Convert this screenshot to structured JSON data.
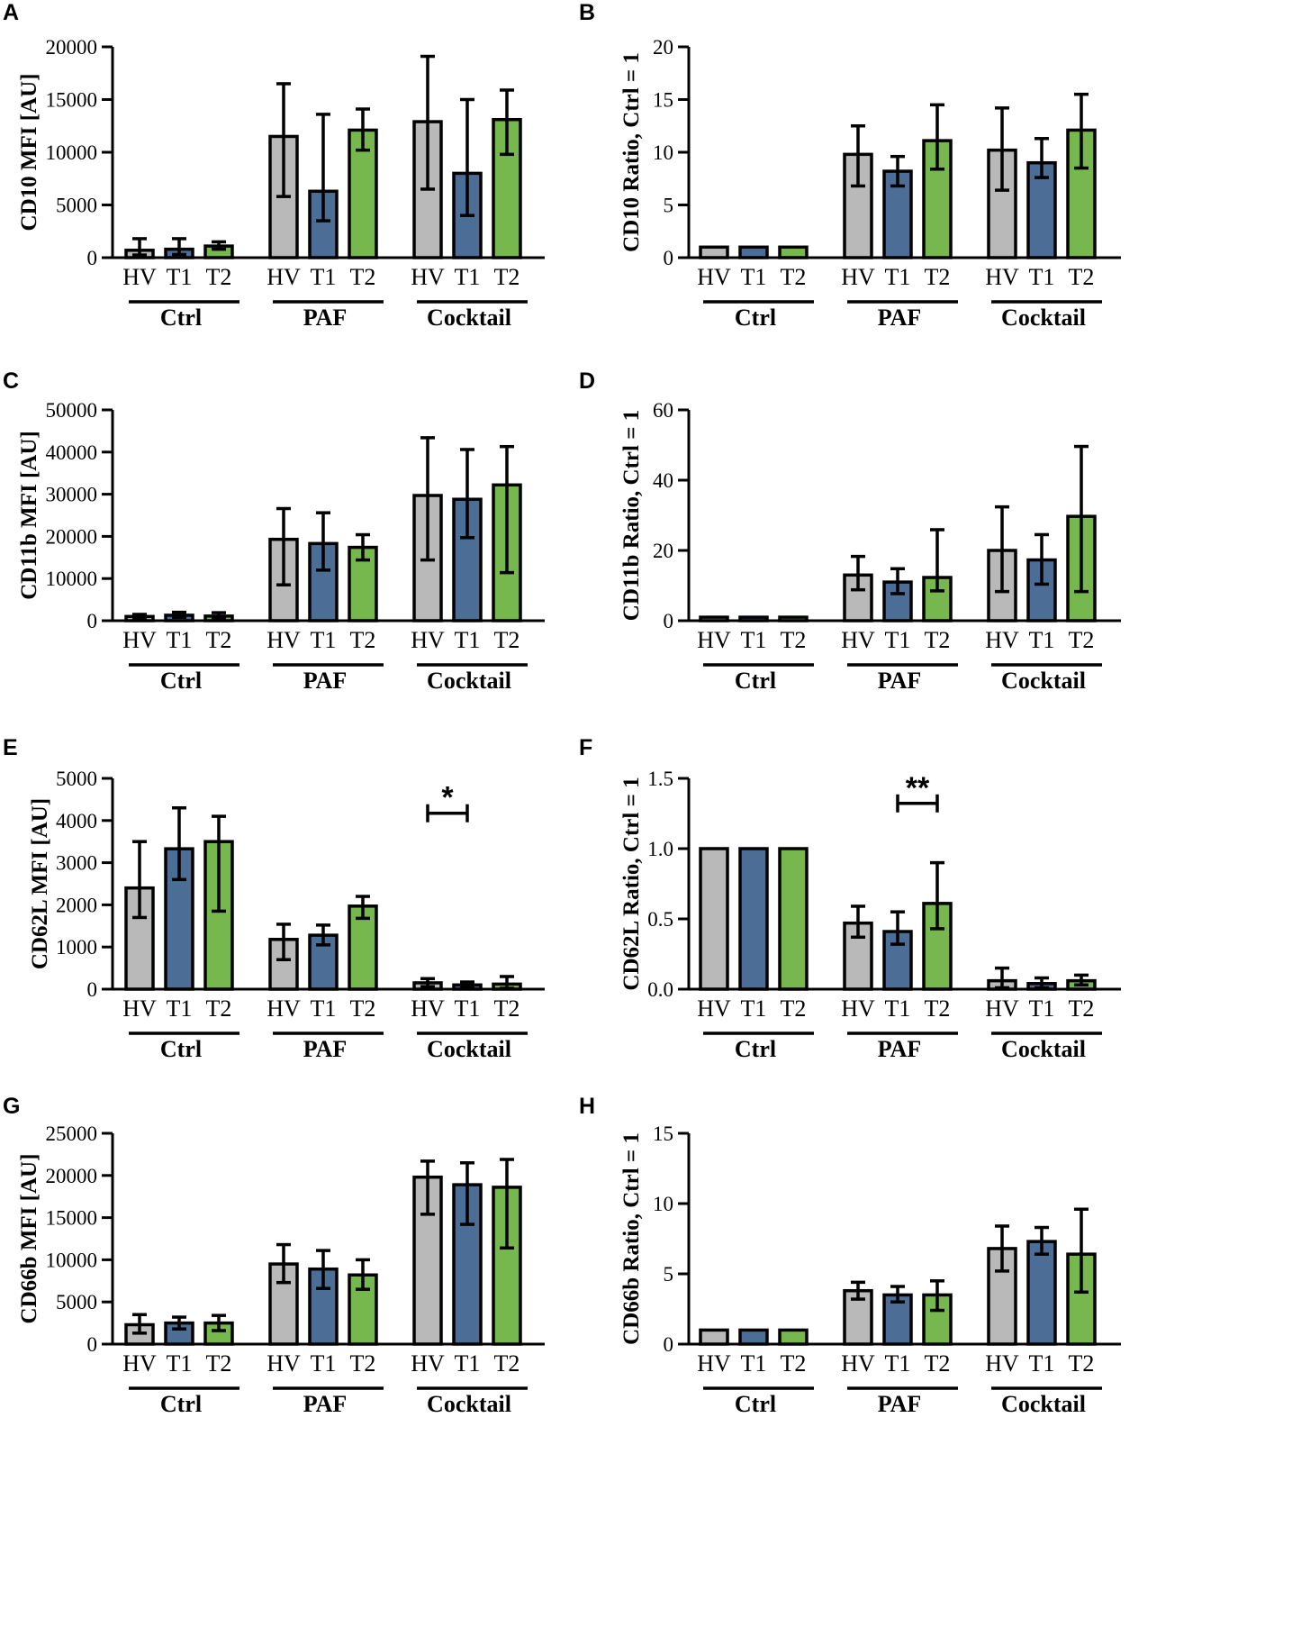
{
  "colors": {
    "HV": "#b9b9b9",
    "T1": "#4c6e96",
    "T2": "#77b84e",
    "axis": "#000000"
  },
  "chart_data": [
    {
      "panel": "A",
      "type": "bar",
      "ylabel": "CD10 MFI [AU]",
      "ylim": [
        0,
        20000
      ],
      "yticks": [
        0,
        5000,
        10000,
        15000,
        20000
      ],
      "ytick_labels": [
        "0",
        "5000",
        "10000",
        "15000",
        "20000"
      ],
      "groups": [
        "Ctrl",
        "PAF",
        "Cocktail"
      ],
      "categories": [
        "HV",
        "T1",
        "T2"
      ],
      "series": [
        {
          "name": "HV",
          "values": [
            700,
            11500,
            12900
          ],
          "err_low": [
            250,
            5800,
            6500
          ],
          "err_high": [
            1800,
            16500,
            19100
          ]
        },
        {
          "name": "T1",
          "values": [
            800,
            6300,
            8000
          ],
          "err_low": [
            300,
            3500,
            4000
          ],
          "err_high": [
            1800,
            13600,
            15000
          ]
        },
        {
          "name": "T2",
          "values": [
            1100,
            12100,
            13100
          ],
          "err_low": [
            800,
            10200,
            9800
          ],
          "err_high": [
            1500,
            14100,
            15900
          ]
        }
      ],
      "significance": []
    },
    {
      "panel": "B",
      "type": "bar",
      "ylabel": "CD10 Ratio, Ctrl = 1",
      "ylim": [
        0,
        20
      ],
      "yticks": [
        0,
        5,
        10,
        15,
        20
      ],
      "ytick_labels": [
        "0",
        "5",
        "10",
        "15",
        "20"
      ],
      "groups": [
        "Ctrl",
        "PAF",
        "Cocktail"
      ],
      "categories": [
        "HV",
        "T1",
        "T2"
      ],
      "series": [
        {
          "name": "HV",
          "values": [
            1,
            9.8,
            10.2
          ],
          "err_low": [
            1,
            6.8,
            6.4
          ],
          "err_high": [
            1,
            12.5,
            14.2
          ]
        },
        {
          "name": "T1",
          "values": [
            1,
            8.2,
            9.0
          ],
          "err_low": [
            1,
            6.8,
            7.6
          ],
          "err_high": [
            1,
            9.6,
            11.3
          ]
        },
        {
          "name": "T2",
          "values": [
            1,
            11.1,
            12.1
          ],
          "err_low": [
            1,
            8.4,
            8.5
          ],
          "err_high": [
            1,
            14.5,
            15.5
          ]
        }
      ],
      "significance": []
    },
    {
      "panel": "C",
      "type": "bar",
      "ylabel": "CD11b MFI [AU]",
      "ylim": [
        0,
        50000
      ],
      "yticks": [
        0,
        10000,
        20000,
        30000,
        40000,
        50000
      ],
      "ytick_labels": [
        "0",
        "10000",
        "20000",
        "30000",
        "40000",
        "50000"
      ],
      "groups": [
        "Ctrl",
        "PAF",
        "Cocktail"
      ],
      "categories": [
        "HV",
        "T1",
        "T2"
      ],
      "series": [
        {
          "name": "HV",
          "values": [
            1000,
            19300,
            29700
          ],
          "err_low": [
            600,
            8500,
            14400
          ],
          "err_high": [
            1500,
            26600,
            43400
          ]
        },
        {
          "name": "T1",
          "values": [
            1300,
            18300,
            28800
          ],
          "err_low": [
            800,
            12000,
            19700
          ],
          "err_high": [
            2000,
            25600,
            40600
          ]
        },
        {
          "name": "T2",
          "values": [
            1100,
            17400,
            32200
          ],
          "err_low": [
            500,
            14400,
            11400
          ],
          "err_high": [
            1900,
            20400,
            41300
          ]
        }
      ],
      "significance": []
    },
    {
      "panel": "D",
      "type": "bar",
      "ylabel": "CD11b Ratio, Ctrl = 1",
      "ylim": [
        0,
        60
      ],
      "yticks": [
        0,
        20,
        40,
        60
      ],
      "ytick_labels": [
        "0",
        "20",
        "40",
        "60"
      ],
      "groups": [
        "Ctrl",
        "PAF",
        "Cocktail"
      ],
      "categories": [
        "HV",
        "T1",
        "T2"
      ],
      "series": [
        {
          "name": "HV",
          "values": [
            1,
            13.0,
            20.0
          ],
          "err_low": [
            1,
            8.8,
            8.3
          ],
          "err_high": [
            1,
            18.3,
            32.4
          ]
        },
        {
          "name": "T1",
          "values": [
            1,
            11.0,
            17.3
          ],
          "err_low": [
            1,
            7.7,
            10.4
          ],
          "err_high": [
            1,
            14.8,
            24.5
          ]
        },
        {
          "name": "T2",
          "values": [
            1,
            12.3,
            29.7
          ],
          "err_low": [
            1,
            8.5,
            8.3
          ],
          "err_high": [
            1,
            25.9,
            49.6
          ]
        }
      ],
      "significance": []
    },
    {
      "panel": "E",
      "type": "bar",
      "ylabel": "CD62L MFI [AU]",
      "ylim": [
        0,
        5000
      ],
      "yticks": [
        0,
        1000,
        2000,
        3000,
        4000,
        5000
      ],
      "ytick_labels": [
        "0",
        "1000",
        "2000",
        "3000",
        "4000",
        "5000"
      ],
      "groups": [
        "Ctrl",
        "PAF",
        "Cocktail"
      ],
      "categories": [
        "HV",
        "T1",
        "T2"
      ],
      "series": [
        {
          "name": "HV",
          "values": [
            2400,
            1180,
            150
          ],
          "err_low": [
            1700,
            700,
            60
          ],
          "err_high": [
            3500,
            1540,
            250
          ]
        },
        {
          "name": "T1",
          "values": [
            3330,
            1280,
            100
          ],
          "err_low": [
            2600,
            1050,
            40
          ],
          "err_high": [
            4300,
            1520,
            170
          ]
        },
        {
          "name": "T2",
          "values": [
            3500,
            1970,
            120
          ],
          "err_low": [
            1850,
            1680,
            20
          ],
          "err_high": [
            4100,
            2200,
            300
          ]
        }
      ],
      "significance": [
        {
          "group": 2,
          "from": "HV",
          "to": "T1",
          "label": "*",
          "y": 4600
        }
      ]
    },
    {
      "panel": "F",
      "type": "bar",
      "ylabel": "CD62L Ratio, Ctrl = 1",
      "ylim": [
        0,
        1.5
      ],
      "yticks": [
        0,
        0.5,
        1.0,
        1.5
      ],
      "ytick_labels": [
        "0.0",
        "0.5",
        "1.0",
        "1.5"
      ],
      "groups": [
        "Ctrl",
        "PAF",
        "Cocktail"
      ],
      "categories": [
        "HV",
        "T1",
        "T2"
      ],
      "series": [
        {
          "name": "HV",
          "values": [
            1,
            0.47,
            0.06
          ],
          "err_low": [
            1,
            0.37,
            0.01
          ],
          "err_high": [
            1,
            0.59,
            0.15
          ]
        },
        {
          "name": "T1",
          "values": [
            1,
            0.41,
            0.04
          ],
          "err_low": [
            1,
            0.32,
            0.01
          ],
          "err_high": [
            1,
            0.55,
            0.08
          ]
        },
        {
          "name": "T2",
          "values": [
            1,
            0.61,
            0.06
          ],
          "err_low": [
            1,
            0.43,
            0.03
          ],
          "err_high": [
            1,
            0.9,
            0.1
          ]
        }
      ],
      "significance": [
        {
          "group": 1,
          "from": "T1",
          "to": "T2",
          "label": "**",
          "y": 1.45
        }
      ]
    },
    {
      "panel": "G",
      "type": "bar",
      "ylabel": "CD66b MFI [AU]",
      "ylim": [
        0,
        25000
      ],
      "yticks": [
        0,
        5000,
        10000,
        15000,
        20000,
        25000
      ],
      "ytick_labels": [
        "0",
        "5000",
        "10000",
        "15000",
        "20000",
        "25000"
      ],
      "groups": [
        "Ctrl",
        "PAF",
        "Cocktail"
      ],
      "categories": [
        "HV",
        "T1",
        "T2"
      ],
      "series": [
        {
          "name": "HV",
          "values": [
            2300,
            9500,
            19800
          ],
          "err_low": [
            1300,
            7300,
            15400
          ],
          "err_high": [
            3500,
            11800,
            21700
          ]
        },
        {
          "name": "T1",
          "values": [
            2500,
            8900,
            18900
          ],
          "err_low": [
            1800,
            6600,
            14200
          ],
          "err_high": [
            3200,
            11100,
            21500
          ]
        },
        {
          "name": "T2",
          "values": [
            2500,
            8200,
            18600
          ],
          "err_low": [
            1600,
            6500,
            11400
          ],
          "err_high": [
            3400,
            10000,
            21900
          ]
        }
      ],
      "significance": []
    },
    {
      "panel": "H",
      "type": "bar",
      "ylabel": "CD66b Ratio, Ctrl = 1",
      "ylim": [
        0,
        15
      ],
      "yticks": [
        0,
        5,
        10,
        15
      ],
      "ytick_labels": [
        "0",
        "5",
        "10",
        "15"
      ],
      "groups": [
        "Ctrl",
        "PAF",
        "Cocktail"
      ],
      "categories": [
        "HV",
        "T1",
        "T2"
      ],
      "series": [
        {
          "name": "HV",
          "values": [
            1,
            3.8,
            6.8
          ],
          "err_low": [
            1,
            3.2,
            5.2
          ],
          "err_high": [
            1,
            4.4,
            8.4
          ]
        },
        {
          "name": "T1",
          "values": [
            1,
            3.5,
            7.3
          ],
          "err_low": [
            1,
            3.0,
            6.4
          ],
          "err_high": [
            1,
            4.1,
            8.3
          ]
        },
        {
          "name": "T2",
          "values": [
            1,
            3.5,
            6.4
          ],
          "err_low": [
            1,
            2.4,
            3.7
          ],
          "err_high": [
            1,
            4.5,
            9.6
          ]
        }
      ],
      "significance": []
    }
  ]
}
